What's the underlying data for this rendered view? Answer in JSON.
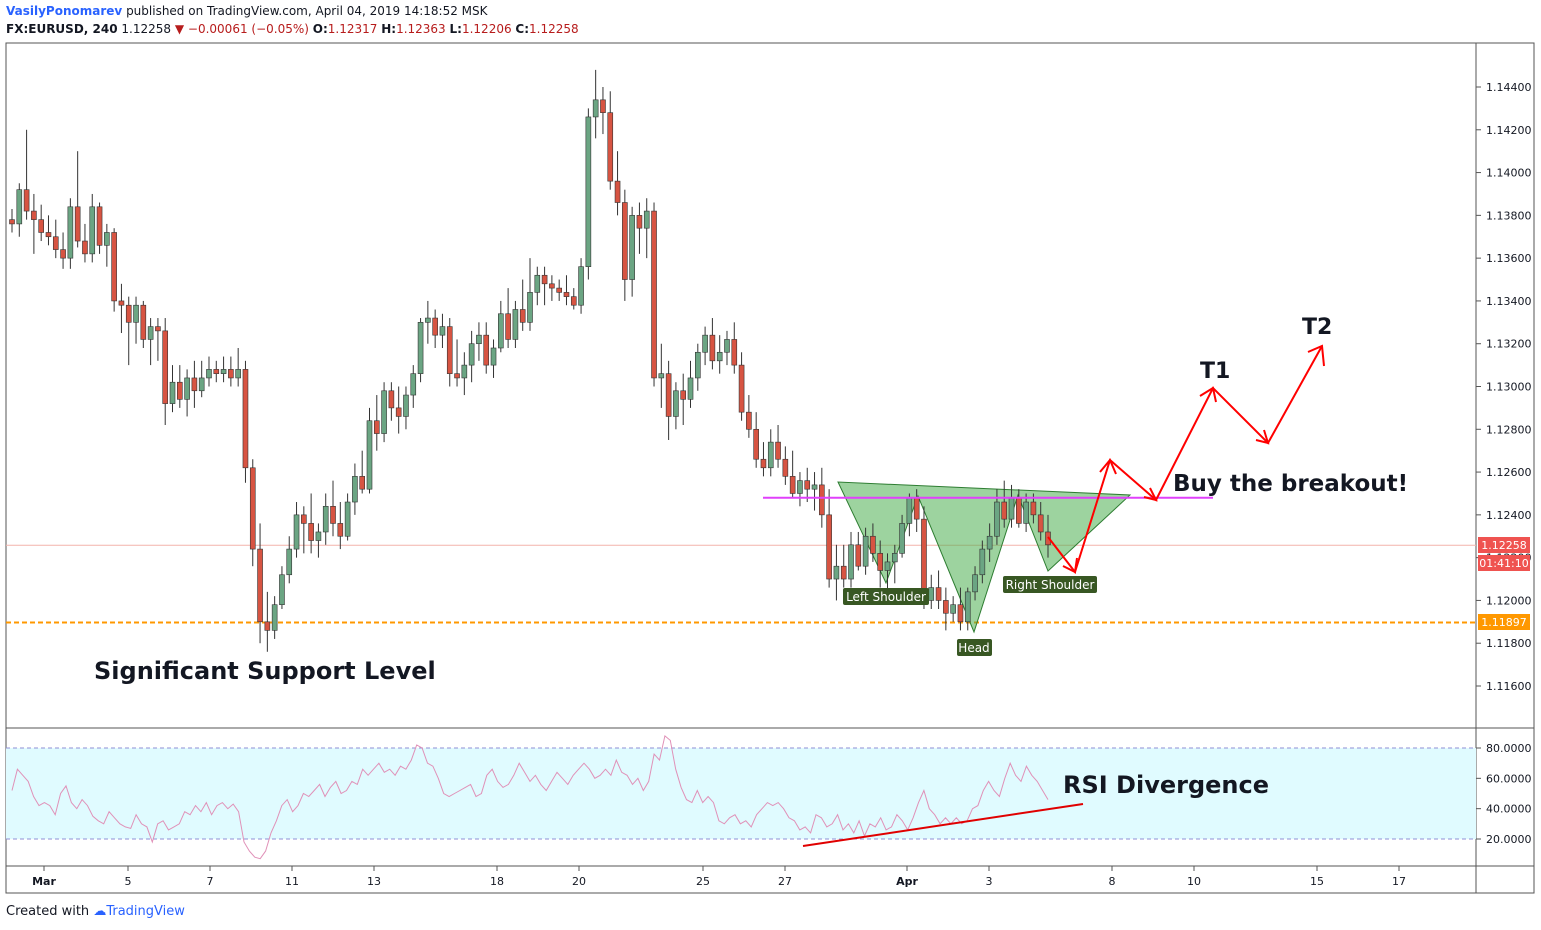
{
  "header": {
    "author": "VasilyPonomarev",
    "published": "published on TradingView.com, April 04, 2019 14:18:52 MSK",
    "symbol": "FX:EURUSD, 240",
    "last": "1.12258",
    "change": "−0.00061 (−0.05%)",
    "o_label": "O:",
    "o": "1.12317",
    "h_label": "H:",
    "h": "1.12363",
    "l_label": "L:",
    "l": "1.12206",
    "c_label": "C:",
    "c": "1.12258"
  },
  "footer": {
    "created": "Created with",
    "brand": "TradingView"
  },
  "colors": {
    "up": "#6ba583",
    "down": "#d75442",
    "accent": "#2962ff",
    "neckline": "#e040fb",
    "support": "#ff9800",
    "rsi_band": "#e0fbff",
    "rsi_line": "#e091b8",
    "arrow": "#ff0000",
    "pattern": "#4caf50"
  },
  "chart_data": {
    "type": "candlestick",
    "price_axis": {
      "ylim": [
        1.1148,
        1.1462
      ],
      "ticks": [
        "1.14400",
        "1.14200",
        "1.14000",
        "1.13800",
        "1.13600",
        "1.13400",
        "1.13200",
        "1.13000",
        "1.12800",
        "1.12600",
        "1.12400",
        "1.12200",
        "1.12000",
        "1.11800",
        "1.11600"
      ]
    },
    "time_axis": {
      "labels": [
        "Mar",
        "5",
        "7",
        "11",
        "13",
        "18",
        "20",
        "25",
        "27",
        "Apr",
        "3",
        "8",
        "10",
        "15",
        "17"
      ]
    },
    "price_tags": [
      {
        "label": "1.12258",
        "bg": "#ef5350"
      },
      {
        "label": "01:41:10",
        "bg": "#ef5350"
      },
      {
        "label": "1.11897",
        "bg": "#ff9800"
      }
    ],
    "levels": {
      "last_price": 1.12258,
      "support": 1.11897,
      "neckline": 1.1248
    },
    "annotations": {
      "support_text": "Significant Support Level",
      "breakout_text": "Buy the breakout!",
      "t1": "T1",
      "t2": "T2",
      "rsi_text": "RSI Divergence",
      "left_shoulder": "Left Shoulder",
      "head": "Head",
      "right_shoulder": "Right Shoulder"
    },
    "rsi": {
      "ylim": [
        10,
        88
      ],
      "ticks": [
        "80.0000",
        "60.0000",
        "40.0000",
        "20.0000"
      ],
      "band": [
        20,
        80
      ],
      "values": [
        52,
        66,
        62,
        58,
        48,
        42,
        44,
        42,
        36,
        50,
        55,
        44,
        40,
        46,
        42,
        35,
        32,
        30,
        38,
        34,
        30,
        28,
        27,
        36,
        30,
        28,
        18,
        30,
        32,
        26,
        28,
        30,
        38,
        36,
        42,
        38,
        44,
        36,
        42,
        44,
        40,
        43,
        38,
        18,
        12,
        8,
        7,
        12,
        24,
        32,
        42,
        46,
        38,
        42,
        50,
        48,
        52,
        56,
        48,
        54,
        58,
        50,
        52,
        58,
        56,
        66,
        62,
        66,
        70,
        64,
        66,
        62,
        68,
        66,
        72,
        82,
        80,
        70,
        68,
        60,
        50,
        48,
        50,
        52,
        54,
        56,
        48,
        50,
        62,
        66,
        58,
        54,
        56,
        62,
        70,
        64,
        58,
        62,
        56,
        52,
        58,
        64,
        60,
        56,
        62,
        66,
        70,
        66,
        60,
        62,
        66,
        62,
        72,
        64,
        62,
        56,
        60,
        52,
        58,
        76,
        72,
        88,
        85,
        66,
        54,
        46,
        44,
        52,
        44,
        48,
        44,
        32,
        30,
        34,
        36,
        30,
        32,
        28,
        36,
        40,
        44,
        42,
        44,
        40,
        34,
        32,
        26,
        28,
        24,
        36,
        34,
        28,
        30,
        36,
        26,
        30,
        24,
        32,
        22,
        30,
        28,
        34,
        26,
        28,
        36,
        32,
        26,
        34,
        44,
        52,
        40,
        36,
        30,
        34,
        30,
        34,
        30,
        32,
        40,
        42,
        52,
        58,
        52,
        48,
        60,
        70,
        62,
        58,
        68,
        62,
        58,
        52,
        46
      ]
    },
    "candles": [
      [
        1.1378,
        1.1383,
        1.1372,
        1.1376
      ],
      [
        1.1376,
        1.1395,
        1.137,
        1.1392
      ],
      [
        1.1392,
        1.142,
        1.1378,
        1.1382
      ],
      [
        1.1382,
        1.139,
        1.1362,
        1.1378
      ],
      [
        1.1378,
        1.1385,
        1.1368,
        1.1372
      ],
      [
        1.1372,
        1.138,
        1.1366,
        1.137
      ],
      [
        1.137,
        1.1378,
        1.136,
        1.1364
      ],
      [
        1.1364,
        1.1372,
        1.1355,
        1.136
      ],
      [
        1.136,
        1.1388,
        1.1355,
        1.1384
      ],
      [
        1.1384,
        1.141,
        1.1365,
        1.1368
      ],
      [
        1.1368,
        1.1376,
        1.1358,
        1.1362
      ],
      [
        1.1362,
        1.139,
        1.1358,
        1.1384
      ],
      [
        1.1384,
        1.1386,
        1.1362,
        1.1366
      ],
      [
        1.1366,
        1.1376,
        1.1356,
        1.1372
      ],
      [
        1.1372,
        1.1374,
        1.1335,
        1.134
      ],
      [
        1.134,
        1.1348,
        1.1325,
        1.1338
      ],
      [
        1.1338,
        1.1342,
        1.131,
        1.133
      ],
      [
        1.133,
        1.1342,
        1.132,
        1.1338
      ],
      [
        1.1338,
        1.134,
        1.1318,
        1.1322
      ],
      [
        1.1322,
        1.1332,
        1.131,
        1.1328
      ],
      [
        1.1328,
        1.1332,
        1.1312,
        1.1326
      ],
      [
        1.1326,
        1.1332,
        1.1282,
        1.1292
      ],
      [
        1.1292,
        1.131,
        1.1288,
        1.1302
      ],
      [
        1.1302,
        1.131,
        1.129,
        1.1294
      ],
      [
        1.1294,
        1.1308,
        1.1286,
        1.1304
      ],
      [
        1.1304,
        1.1312,
        1.129,
        1.1298
      ],
      [
        1.1298,
        1.1312,
        1.1295,
        1.1304
      ],
      [
        1.1304,
        1.1314,
        1.13,
        1.1308
      ],
      [
        1.1308,
        1.1312,
        1.1302,
        1.1306
      ],
      [
        1.1306,
        1.1314,
        1.1302,
        1.1308
      ],
      [
        1.1308,
        1.1314,
        1.13,
        1.1304
      ],
      [
        1.1304,
        1.1318,
        1.13,
        1.1308
      ],
      [
        1.1308,
        1.1312,
        1.1255,
        1.1262
      ],
      [
        1.1262,
        1.1266,
        1.1216,
        1.1224
      ],
      [
        1.1224,
        1.1236,
        1.118,
        1.119
      ],
      [
        1.119,
        1.1204,
        1.1176,
        1.1186
      ],
      [
        1.1186,
        1.1202,
        1.1182,
        1.1198
      ],
      [
        1.1198,
        1.1216,
        1.1196,
        1.1212
      ],
      [
        1.1212,
        1.123,
        1.1208,
        1.1224
      ],
      [
        1.1224,
        1.1246,
        1.122,
        1.124
      ],
      [
        1.124,
        1.1244,
        1.1222,
        1.1236
      ],
      [
        1.1236,
        1.125,
        1.1222,
        1.1228
      ],
      [
        1.1228,
        1.1236,
        1.122,
        1.1232
      ],
      [
        1.1232,
        1.125,
        1.1226,
        1.1244
      ],
      [
        1.1244,
        1.1256,
        1.123,
        1.1236
      ],
      [
        1.1236,
        1.1246,
        1.1224,
        1.123
      ],
      [
        1.123,
        1.125,
        1.1228,
        1.1246
      ],
      [
        1.1246,
        1.1264,
        1.124,
        1.1258
      ],
      [
        1.1258,
        1.127,
        1.125,
        1.1252
      ],
      [
        1.1252,
        1.129,
        1.125,
        1.1284
      ],
      [
        1.1284,
        1.1296,
        1.127,
        1.1278
      ],
      [
        1.1278,
        1.1302,
        1.1274,
        1.1298
      ],
      [
        1.1298,
        1.1302,
        1.1284,
        1.129
      ],
      [
        1.129,
        1.13,
        1.1278,
        1.1286
      ],
      [
        1.1286,
        1.13,
        1.128,
        1.1296
      ],
      [
        1.1296,
        1.131,
        1.129,
        1.1306
      ],
      [
        1.1306,
        1.1332,
        1.1302,
        1.133
      ],
      [
        1.133,
        1.134,
        1.132,
        1.1332
      ],
      [
        1.1332,
        1.1336,
        1.1318,
        1.1324
      ],
      [
        1.1324,
        1.1334,
        1.1318,
        1.1328
      ],
      [
        1.1328,
        1.1332,
        1.13,
        1.1306
      ],
      [
        1.1306,
        1.1322,
        1.13,
        1.1304
      ],
      [
        1.1304,
        1.1316,
        1.1296,
        1.131
      ],
      [
        1.131,
        1.1326,
        1.1302,
        1.132
      ],
      [
        1.132,
        1.133,
        1.1312,
        1.1324
      ],
      [
        1.1324,
        1.133,
        1.1306,
        1.131
      ],
      [
        1.131,
        1.1322,
        1.1304,
        1.1318
      ],
      [
        1.1318,
        1.134,
        1.1316,
        1.1334
      ],
      [
        1.1334,
        1.1346,
        1.1318,
        1.1322
      ],
      [
        1.1322,
        1.134,
        1.1318,
        1.1336
      ],
      [
        1.1336,
        1.135,
        1.1326,
        1.133
      ],
      [
        1.133,
        1.136,
        1.1326,
        1.1344
      ],
      [
        1.1344,
        1.1356,
        1.1338,
        1.1352
      ],
      [
        1.1352,
        1.1356,
        1.1338,
        1.1348
      ],
      [
        1.1348,
        1.1352,
        1.134,
        1.1346
      ],
      [
        1.1346,
        1.135,
        1.134,
        1.1344
      ],
      [
        1.1344,
        1.1352,
        1.1338,
        1.1342
      ],
      [
        1.1342,
        1.1346,
        1.1336,
        1.1338
      ],
      [
        1.1338,
        1.136,
        1.1334,
        1.1356
      ],
      [
        1.1356,
        1.143,
        1.135,
        1.1426
      ],
      [
        1.1426,
        1.1448,
        1.1416,
        1.1434
      ],
      [
        1.1434,
        1.144,
        1.1418,
        1.1428
      ],
      [
        1.1428,
        1.1438,
        1.1392,
        1.1396
      ],
      [
        1.1396,
        1.141,
        1.138,
        1.1386
      ],
      [
        1.1386,
        1.1392,
        1.134,
        1.135
      ],
      [
        1.135,
        1.1384,
        1.1342,
        1.138
      ],
      [
        1.138,
        1.1386,
        1.1362,
        1.1374
      ],
      [
        1.1374,
        1.1388,
        1.136,
        1.1382
      ],
      [
        1.1382,
        1.1386,
        1.13,
        1.1304
      ],
      [
        1.1304,
        1.132,
        1.129,
        1.1306
      ],
      [
        1.1306,
        1.1312,
        1.1275,
        1.1286
      ],
      [
        1.1286,
        1.1302,
        1.128,
        1.1298
      ],
      [
        1.1298,
        1.1306,
        1.1282,
        1.1294
      ],
      [
        1.1294,
        1.1312,
        1.129,
        1.1304
      ],
      [
        1.1304,
        1.132,
        1.1298,
        1.1316
      ],
      [
        1.1316,
        1.1328,
        1.131,
        1.1324
      ],
      [
        1.1324,
        1.1332,
        1.1308,
        1.1312
      ],
      [
        1.1312,
        1.1324,
        1.1306,
        1.1316
      ],
      [
        1.1316,
        1.1326,
        1.131,
        1.1322
      ],
      [
        1.1322,
        1.133,
        1.1306,
        1.131
      ],
      [
        1.131,
        1.1316,
        1.1284,
        1.1288
      ],
      [
        1.1288,
        1.1296,
        1.1276,
        1.128
      ],
      [
        1.128,
        1.1288,
        1.1262,
        1.1266
      ],
      [
        1.1266,
        1.1274,
        1.1258,
        1.1262
      ],
      [
        1.1262,
        1.128,
        1.1258,
        1.1274
      ],
      [
        1.1274,
        1.1282,
        1.1262,
        1.1266
      ],
      [
        1.1266,
        1.1272,
        1.1254,
        1.1258
      ],
      [
        1.1258,
        1.127,
        1.1248,
        1.125
      ],
      [
        1.125,
        1.126,
        1.1244,
        1.1256
      ],
      [
        1.1256,
        1.1262,
        1.1246,
        1.1252
      ],
      [
        1.1252,
        1.126,
        1.1242,
        1.1254
      ],
      [
        1.1254,
        1.1262,
        1.1234,
        1.124
      ],
      [
        1.124,
        1.1252,
        1.1206,
        1.121
      ],
      [
        1.121,
        1.1226,
        1.12,
        1.1216
      ],
      [
        1.1216,
        1.1226,
        1.1206,
        1.121
      ],
      [
        1.121,
        1.1232,
        1.1206,
        1.1226
      ],
      [
        1.1226,
        1.1232,
        1.1214,
        1.1216
      ],
      [
        1.1216,
        1.1234,
        1.1212,
        1.123
      ],
      [
        1.123,
        1.1236,
        1.1218,
        1.1222
      ],
      [
        1.1222,
        1.1228,
        1.1206,
        1.1214
      ],
      [
        1.1214,
        1.1222,
        1.1204,
        1.1218
      ],
      [
        1.1218,
        1.1226,
        1.1208,
        1.1222
      ],
      [
        1.1222,
        1.124,
        1.122,
        1.1236
      ],
      [
        1.1236,
        1.125,
        1.123,
        1.1248
      ],
      [
        1.1248,
        1.1252,
        1.1232,
        1.1238
      ],
      [
        1.1238,
        1.1244,
        1.1196,
        1.12
      ],
      [
        1.12,
        1.1212,
        1.1196,
        1.1206
      ],
      [
        1.1206,
        1.1214,
        1.1196,
        1.12
      ],
      [
        1.12,
        1.1206,
        1.1186,
        1.1194
      ],
      [
        1.1194,
        1.1202,
        1.119,
        1.1198
      ],
      [
        1.1198,
        1.1206,
        1.1186,
        1.119
      ],
      [
        1.119,
        1.1206,
        1.1186,
        1.1204
      ],
      [
        1.1204,
        1.1216,
        1.12,
        1.1212
      ],
      [
        1.1212,
        1.1228,
        1.1208,
        1.1224
      ],
      [
        1.1224,
        1.1236,
        1.1218,
        1.123
      ],
      [
        1.123,
        1.1252,
        1.1226,
        1.1246
      ],
      [
        1.1246,
        1.1256,
        1.1234,
        1.1238
      ],
      [
        1.1238,
        1.1254,
        1.1234,
        1.1248
      ],
      [
        1.1248,
        1.1252,
        1.1234,
        1.1236
      ],
      [
        1.1236,
        1.125,
        1.1232,
        1.1246
      ],
      [
        1.1246,
        1.125,
        1.1236,
        1.124
      ],
      [
        1.124,
        1.1246,
        1.1228,
        1.1232
      ],
      [
        1.1232,
        1.124,
        1.122,
        1.1226
      ]
    ]
  }
}
